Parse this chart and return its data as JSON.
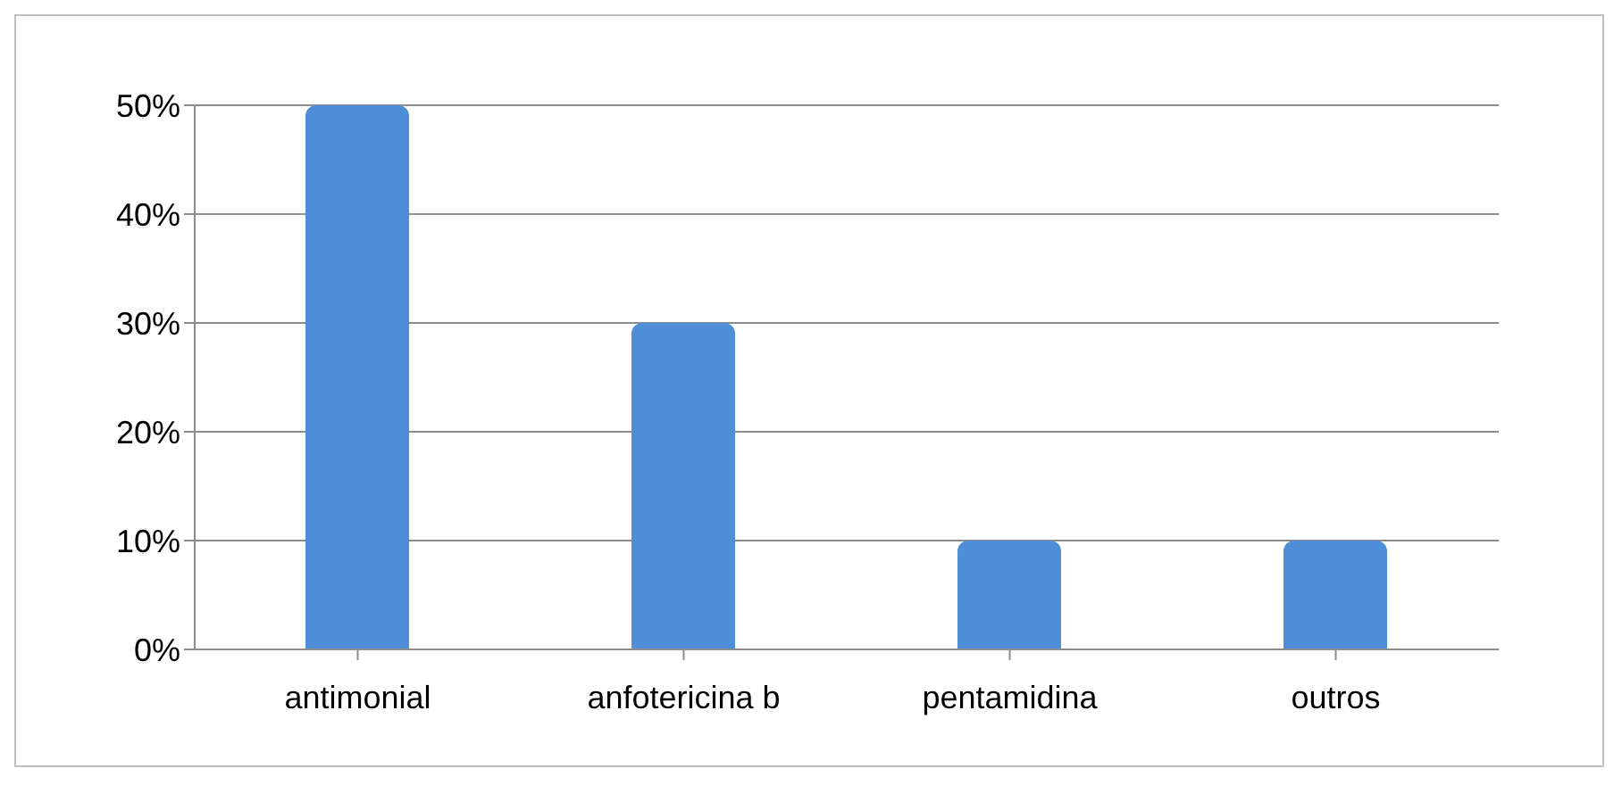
{
  "chart_data": {
    "type": "bar",
    "categories": [
      "antimonial",
      "anfotericina b",
      "pentamidina",
      "outros"
    ],
    "values": [
      50,
      30,
      10,
      10
    ],
    "color": "#4f8fd8",
    "ylim": [
      0,
      50
    ],
    "yticks": [
      {
        "value": 0,
        "label": "0%"
      },
      {
        "value": 10,
        "label": "10%"
      },
      {
        "value": 20,
        "label": "20%"
      },
      {
        "value": 30,
        "label": "30%"
      },
      {
        "value": 40,
        "label": "40%"
      },
      {
        "value": 50,
        "label": "50%"
      }
    ],
    "grid": "y",
    "legend": false
  }
}
